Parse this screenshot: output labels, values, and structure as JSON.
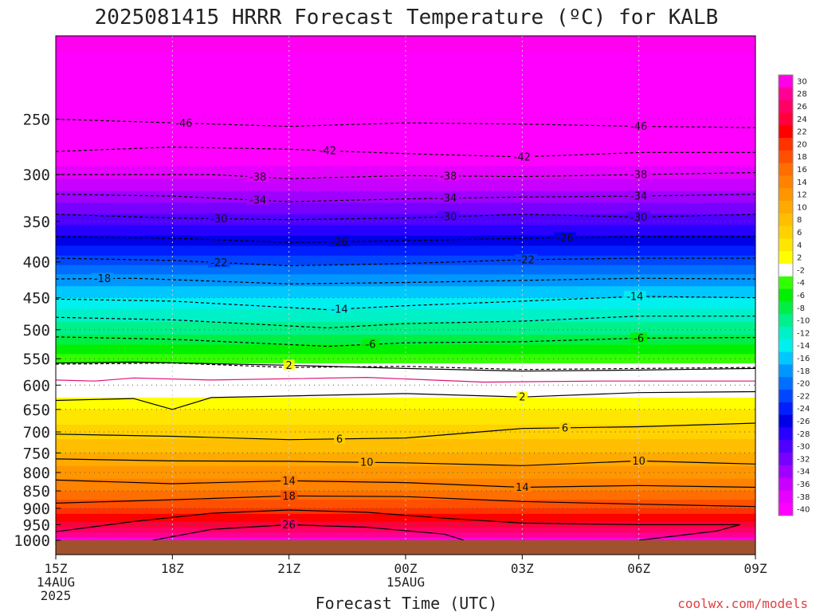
{
  "chart_data": {
    "type": "heatmap",
    "title": "2025081415 HRRR Forecast Temperature (ºC) for KALB",
    "xlabel": "Forecast Time (UTC)",
    "credit": "coolwx.com/models",
    "x_ticks": [
      {
        "hour": 0,
        "label": "15Z",
        "sub1": "14AUG",
        "sub2": "2025"
      },
      {
        "hour": 3,
        "label": "18Z",
        "sub1": "",
        "sub2": ""
      },
      {
        "hour": 6,
        "label": "21Z",
        "sub1": "",
        "sub2": ""
      },
      {
        "hour": 9,
        "label": "00Z",
        "sub1": "15AUG",
        "sub2": ""
      },
      {
        "hour": 12,
        "label": "03Z",
        "sub1": "",
        "sub2": ""
      },
      {
        "hour": 15,
        "label": "06Z",
        "sub1": "",
        "sub2": ""
      },
      {
        "hour": 18,
        "label": "09Z",
        "sub1": "",
        "sub2": ""
      }
    ],
    "xlim": [
      0,
      18
    ],
    "y_axis": {
      "scale": "log-pressure",
      "reversed": true,
      "top_hpa": 190,
      "bottom_hpa": 1000
    },
    "y_ticks": [
      "250",
      "300",
      "350",
      "400",
      "450",
      "500",
      "550",
      "600",
      "650",
      "700",
      "750",
      "800",
      "850",
      "900",
      "950",
      "1000"
    ],
    "colorbar_ticks": [
      "30",
      "28",
      "26",
      "24",
      "22",
      "20",
      "18",
      "16",
      "14",
      "12",
      "10",
      "8",
      "6",
      "4",
      "2",
      "-2",
      "-4",
      "-6",
      "-8",
      "-10",
      "-12",
      "-14",
      "-16",
      "-18",
      "-20",
      "-22",
      "-24",
      "-26",
      "-28",
      "-30",
      "-32",
      "-34",
      "-36",
      "-38",
      "-40"
    ],
    "colorbar_colors": [
      "#ff00e6",
      "#ff0096",
      "#ff0064",
      "#ff003c",
      "#ff0000",
      "#ff3200",
      "#ff5000",
      "#ff6e00",
      "#ff8200",
      "#ff9600",
      "#ffaa00",
      "#ffbe00",
      "#ffd200",
      "#ffe600",
      "#ffff00",
      "#ffffff",
      "#32ff00",
      "#00f000",
      "#00ee46",
      "#00f08c",
      "#00f0c8",
      "#00f0f0",
      "#00c8ff",
      "#0096ff",
      "#006eff",
      "#0046ff",
      "#001eff",
      "#0000e6",
      "#2800ff",
      "#5000ff",
      "#7800ff",
      "#a000ff",
      "#c800ff",
      "#e600ff",
      "#ff00ff"
    ],
    "temperature_profile": [
      {
        "p": 200,
        "t": -52
      },
      {
        "p": 225,
        "t": -49
      },
      {
        "p": 250,
        "t": -46
      },
      {
        "p": 275,
        "t": -42
      },
      {
        "p": 300,
        "t": -38
      },
      {
        "p": 325,
        "t": -34
      },
      {
        "p": 350,
        "t": -30
      },
      {
        "p": 375,
        "t": -26
      },
      {
        "p": 400,
        "t": -22
      },
      {
        "p": 425,
        "t": -18
      },
      {
        "p": 450,
        "t": -15
      },
      {
        "p": 475,
        "t": -12
      },
      {
        "p": 500,
        "t": -10
      },
      {
        "p": 525,
        "t": -7
      },
      {
        "p": 550,
        "t": -4
      },
      {
        "p": 575,
        "t": -1
      },
      {
        "p": 600,
        "t": 1
      },
      {
        "p": 650,
        "t": 3
      },
      {
        "p": 700,
        "t": 6
      },
      {
        "p": 750,
        "t": 9
      },
      {
        "p": 800,
        "t": 12
      },
      {
        "p": 850,
        "t": 15
      },
      {
        "p": 900,
        "t": 19
      },
      {
        "p": 950,
        "t": 24
      },
      {
        "p": 1000,
        "t": 30
      }
    ],
    "contours": [
      {
        "level": "-46",
        "style": "dashed",
        "points": [
          [
            0,
            250
          ],
          [
            6,
            256
          ],
          [
            9,
            253
          ],
          [
            12,
            254
          ],
          [
            15,
            256
          ],
          [
            18,
            257
          ]
        ],
        "labels": [
          {
            "x": 3.3
          },
          {
            "x": 15
          }
        ]
      },
      {
        "level": "-42",
        "style": "dashed",
        "points": [
          [
            0,
            278
          ],
          [
            3,
            274
          ],
          [
            6,
            276
          ],
          [
            9,
            280
          ],
          [
            12,
            283
          ],
          [
            15,
            279
          ],
          [
            18,
            279
          ]
        ],
        "labels": [
          {
            "x": 7
          },
          {
            "x": 12
          }
        ]
      },
      {
        "level": "-38",
        "style": "dashed",
        "points": [
          [
            0,
            300
          ],
          [
            4,
            300
          ],
          [
            6,
            304
          ],
          [
            9,
            301
          ],
          [
            12,
            302
          ],
          [
            15,
            300
          ],
          [
            18,
            298
          ]
        ],
        "labels": [
          {
            "x": 5.2
          },
          {
            "x": 10.1
          },
          {
            "x": 15
          }
        ]
      },
      {
        "level": "-34",
        "style": "dashed",
        "points": [
          [
            0,
            320
          ],
          [
            3,
            322
          ],
          [
            6,
            328
          ],
          [
            9,
            325
          ],
          [
            12,
            323
          ],
          [
            15,
            322
          ],
          [
            18,
            320
          ]
        ],
        "labels": [
          {
            "x": 5.2
          },
          {
            "x": 10.1
          },
          {
            "x": 15
          }
        ]
      },
      {
        "level": "-30",
        "style": "dashed",
        "points": [
          [
            0,
            342
          ],
          [
            3,
            346
          ],
          [
            6,
            348
          ],
          [
            9,
            346
          ],
          [
            12,
            342
          ],
          [
            15,
            345
          ],
          [
            18,
            342
          ]
        ],
        "labels": [
          {
            "x": 4.2
          },
          {
            "x": 10.1
          },
          {
            "x": 15
          }
        ]
      },
      {
        "level": "-26",
        "style": "dashed",
        "points": [
          [
            0,
            368
          ],
          [
            3,
            370
          ],
          [
            6,
            375
          ],
          [
            9,
            373
          ],
          [
            12,
            370
          ],
          [
            15,
            368
          ],
          [
            18,
            368
          ]
        ],
        "labels": [
          {
            "x": 7.3
          },
          {
            "x": 13.1
          }
        ]
      },
      {
        "level": "-22",
        "style": "dashed",
        "points": [
          [
            0,
            395
          ],
          [
            3,
            398
          ],
          [
            6,
            405
          ],
          [
            9,
            402
          ],
          [
            12,
            397
          ],
          [
            15,
            395
          ],
          [
            18,
            395
          ]
        ],
        "labels": [
          {
            "x": 4.2
          },
          {
            "x": 12.1
          }
        ]
      },
      {
        "level": "-18",
        "style": "dashed",
        "points": [
          [
            0,
            423
          ],
          [
            2,
            422
          ],
          [
            6,
            430
          ],
          [
            9,
            428
          ],
          [
            12,
            425
          ],
          [
            15,
            422
          ],
          [
            18,
            423
          ]
        ],
        "labels": [
          {
            "x": 1.2
          }
        ]
      },
      {
        "level": "-14",
        "style": "dashed",
        "points": [
          [
            0,
            452
          ],
          [
            3,
            455
          ],
          [
            7,
            468
          ],
          [
            9,
            462
          ],
          [
            12,
            455
          ],
          [
            15,
            448
          ],
          [
            18,
            450
          ]
        ],
        "labels": [
          {
            "x": 7.3
          },
          {
            "x": 14.9
          }
        ]
      },
      {
        "level": "-10",
        "style": "dashed",
        "points": [
          [
            0,
            480
          ],
          [
            3,
            484
          ],
          [
            7,
            497
          ],
          [
            9,
            490
          ],
          [
            12,
            486
          ],
          [
            15,
            478
          ],
          [
            18,
            478
          ]
        ],
        "labels": []
      },
      {
        "level": "-6",
        "style": "dashed",
        "points": [
          [
            0,
            512
          ],
          [
            3,
            516
          ],
          [
            7,
            528
          ],
          [
            9,
            522
          ],
          [
            12,
            520
          ],
          [
            15,
            514
          ],
          [
            18,
            513
          ]
        ],
        "labels": [
          {
            "x": 8.1
          },
          {
            "x": 15
          }
        ]
      },
      {
        "level": "-2",
        "style": "dashed",
        "points": [
          [
            0,
            560
          ],
          [
            3,
            558
          ],
          [
            6,
            566
          ],
          [
            9,
            564
          ],
          [
            12,
            570
          ],
          [
            15,
            568
          ],
          [
            18,
            566
          ]
        ],
        "labels": []
      },
      {
        "level": "2",
        "style": "solid",
        "points": [
          [
            0,
            558
          ],
          [
            2,
            556
          ],
          [
            6,
            562
          ],
          [
            9,
            568
          ],
          [
            12,
            573
          ],
          [
            15,
            571
          ],
          [
            18,
            568
          ]
        ],
        "labels": [
          {
            "x": 6
          }
        ]
      },
      {
        "level": "0",
        "style": "solid-magenta",
        "points": [
          [
            0,
            590
          ],
          [
            1,
            592
          ],
          [
            2,
            586
          ],
          [
            4,
            590
          ],
          [
            8,
            585
          ],
          [
            11,
            594
          ],
          [
            14,
            592
          ],
          [
            18,
            592
          ]
        ],
        "labels": []
      },
      {
        "level": "2",
        "style": "solid",
        "points": [
          [
            0,
            631
          ],
          [
            2,
            627
          ],
          [
            3,
            650
          ],
          [
            4,
            625
          ],
          [
            9,
            617
          ],
          [
            12,
            624
          ],
          [
            15,
            615
          ],
          [
            18,
            613
          ]
        ],
        "labels": [
          {
            "x": 12
          }
        ]
      },
      {
        "level": "6",
        "style": "solid",
        "points": [
          [
            0,
            705
          ],
          [
            3,
            710
          ],
          [
            6,
            718
          ],
          [
            9,
            714
          ],
          [
            12,
            692
          ],
          [
            15,
            688
          ],
          [
            18,
            680
          ]
        ],
        "labels": [
          {
            "x": 7.3
          },
          {
            "x": 13.1
          }
        ]
      },
      {
        "level": "10",
        "style": "solid",
        "points": [
          [
            0,
            765
          ],
          [
            3,
            770
          ],
          [
            6,
            771
          ],
          [
            9,
            775
          ],
          [
            12,
            782
          ],
          [
            15,
            770
          ],
          [
            18,
            778
          ]
        ],
        "labels": [
          {
            "x": 8
          },
          {
            "x": 15
          }
        ]
      },
      {
        "level": "14",
        "style": "solid",
        "points": [
          [
            0,
            820
          ],
          [
            3,
            830
          ],
          [
            6,
            822
          ],
          [
            9,
            827
          ],
          [
            12,
            840
          ],
          [
            15,
            835
          ],
          [
            18,
            840
          ]
        ],
        "labels": [
          {
            "x": 6
          },
          {
            "x": 12
          }
        ]
      },
      {
        "level": "18",
        "style": "solid",
        "points": [
          [
            0,
            885
          ],
          [
            3,
            875
          ],
          [
            6,
            864
          ],
          [
            9,
            866
          ],
          [
            12,
            880
          ],
          [
            15,
            888
          ],
          [
            18,
            895
          ]
        ],
        "labels": [
          {
            "x": 6
          }
        ]
      },
      {
        "level": "22",
        "style": "solid",
        "points": [
          [
            0,
            972
          ],
          [
            2,
            940
          ],
          [
            4,
            915
          ],
          [
            6,
            905
          ],
          [
            8,
            912
          ],
          [
            10,
            930
          ],
          [
            12,
            945
          ],
          [
            15,
            950
          ],
          [
            17.6,
            950
          ],
          [
            17,
            970
          ],
          [
            15,
            1000
          ]
        ],
        "labels": []
      },
      {
        "level": "26",
        "style": "solid",
        "points": [
          [
            2.5,
            1000
          ],
          [
            4,
            965
          ],
          [
            6,
            950
          ],
          [
            8,
            958
          ],
          [
            10,
            980
          ],
          [
            10.5,
            1000
          ]
        ],
        "labels": [
          {
            "x": 6
          }
        ]
      }
    ]
  }
}
